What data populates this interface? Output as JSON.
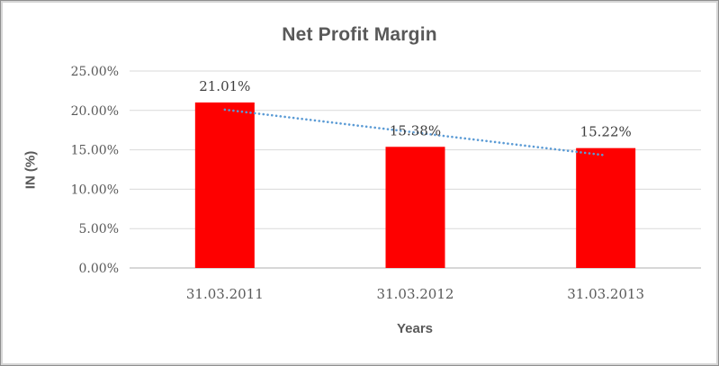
{
  "chart_data": {
    "type": "bar",
    "title": "Net Profit Margin",
    "categories": [
      "31.03.2011",
      "31.03.2012",
      "31.03.2013"
    ],
    "series": [
      {
        "name": "Net Profit Margin",
        "values": [
          21.01,
          15.38,
          15.22
        ]
      }
    ],
    "data_labels": [
      "21.01%",
      "15.38%",
      "15.22%"
    ],
    "xlabel": "Years",
    "ylabel": "IN (%)",
    "ylim": [
      0,
      25
    ],
    "ytick_values": [
      0,
      5,
      10,
      15,
      20,
      25
    ],
    "ytick_labels": [
      "0.00%",
      "5.00%",
      "10.00%",
      "15.00%",
      "20.00%",
      "25.00%"
    ],
    "grid": true,
    "legend": "none",
    "bar_color": "#fe0000",
    "gridline_color": "#d9d9d9",
    "axis_line_color": "#bfbfbf",
    "trendline": {
      "type": "linear",
      "style": "dotted",
      "color": "#5b9bd5",
      "start_value": 20.1,
      "end_value": 14.3
    },
    "text_colors": {
      "title": "#595959",
      "axis_titles": "#595959",
      "tick_labels": "#595959",
      "data_labels": "#3f3f3f"
    }
  }
}
